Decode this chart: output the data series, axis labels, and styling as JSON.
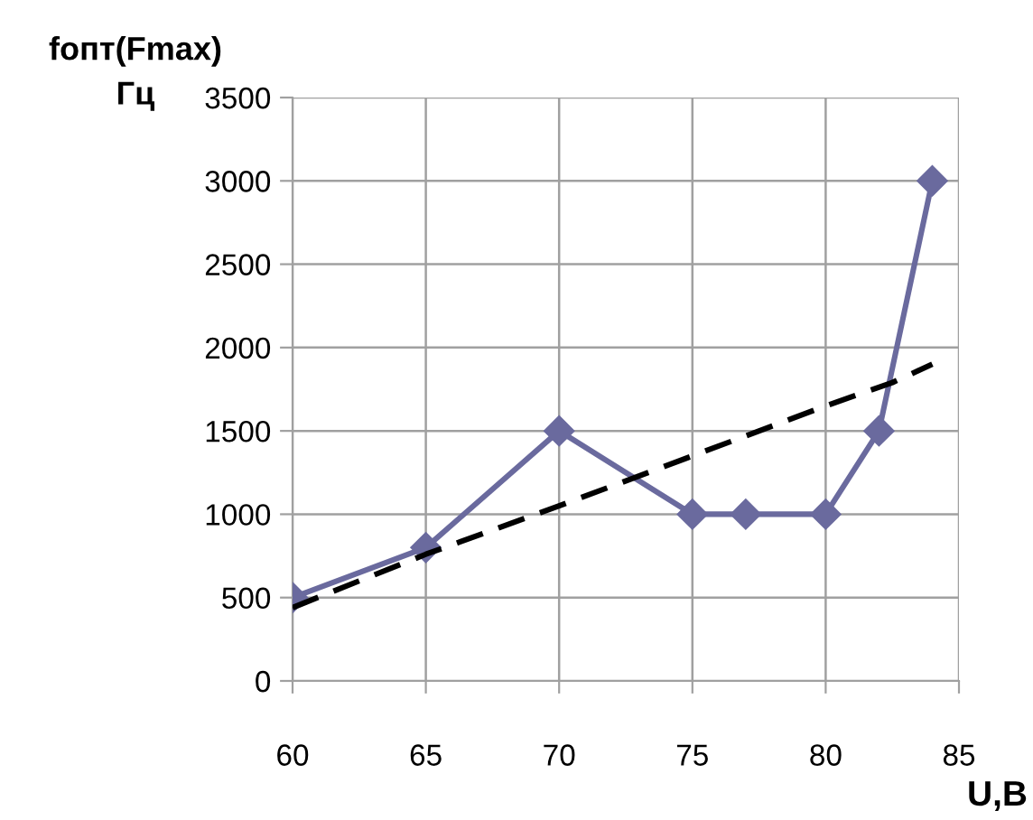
{
  "chart_data": {
    "type": "line",
    "ylabel": "fопт(Fmax)\nГц",
    "xlabel": "U,B",
    "series": [
      {
        "color": "#6a6a9e",
        "marker": "diamond",
        "line_style": "solid",
        "x": [
          60,
          65,
          70,
          75,
          77,
          80,
          82,
          84
        ],
        "values": [
          500,
          800,
          1500,
          1000,
          1000,
          1000,
          1500,
          3000
        ]
      },
      {
        "color": "#000000",
        "marker": "none",
        "line_style": "dashed",
        "x": [
          60,
          65,
          70,
          75,
          80,
          82.5,
          84
        ],
        "values": [
          440,
          760,
          1050,
          1350,
          1650,
          1790,
          1900
        ]
      }
    ],
    "xlim": [
      60,
      85
    ],
    "xticks": [
      60,
      65,
      70,
      75,
      80,
      85
    ],
    "ylim": [
      0,
      3500
    ],
    "yticks": [
      0,
      500,
      1000,
      1500,
      2000,
      2500,
      3000,
      3500
    ],
    "grid": true,
    "legend": false
  }
}
